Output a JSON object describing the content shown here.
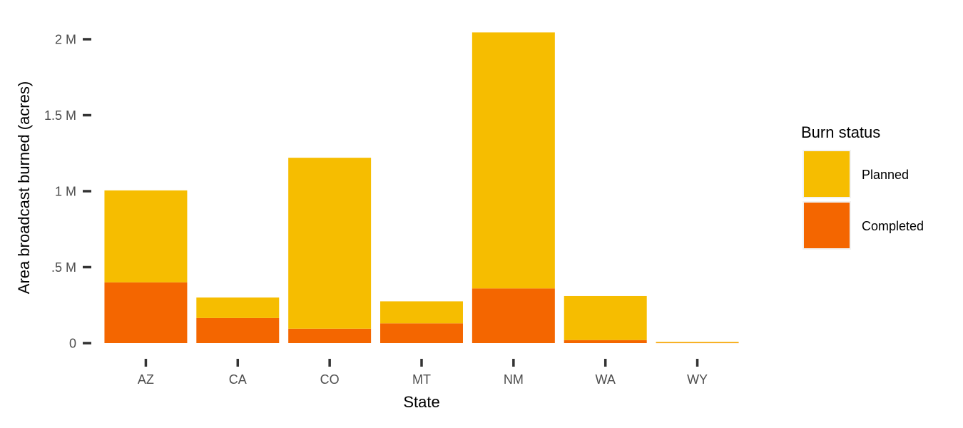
{
  "chart_data": {
    "type": "bar",
    "stacked": true,
    "title": "",
    "xlabel": "State",
    "ylabel": "Area broadcast burned (acres)",
    "ylim": [
      0,
      2000000
    ],
    "yticks": [
      {
        "value": 0,
        "label": "0"
      },
      {
        "value": 500000,
        "label": ".5 M"
      },
      {
        "value": 1000000,
        "label": "1 M"
      },
      {
        "value": 1500000,
        "label": "1.5 M"
      },
      {
        "value": 2000000,
        "label": "2 M"
      }
    ],
    "categories": [
      "AZ",
      "CA",
      "CO",
      "MT",
      "NM",
      "WA",
      "WY"
    ],
    "series": [
      {
        "name": "Completed",
        "color": "#f46600",
        "values": [
          400000,
          165000,
          95000,
          130000,
          360000,
          20000,
          2000
        ]
      },
      {
        "name": "Planned",
        "color": "#f6bd00",
        "values": [
          605000,
          135000,
          1125000,
          145000,
          1685000,
          290000,
          6000
        ]
      }
    ],
    "legend": {
      "title": "Burn status",
      "position": "right",
      "entries": [
        "Planned",
        "Completed"
      ]
    },
    "grid": false
  }
}
